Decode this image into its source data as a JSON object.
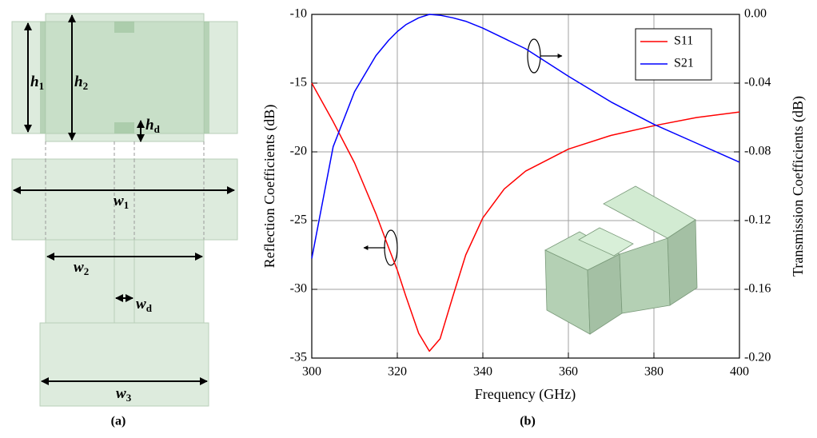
{
  "chart_data": {
    "type": "line",
    "x_label": "Frequency (GHz)",
    "y_label": "Reflection Coefficients (dB)",
    "y2_label": "Transmission Coefficients (dB)",
    "x": [
      300,
      305,
      310,
      315,
      318,
      320,
      322,
      325,
      327.5,
      330,
      333,
      336,
      340,
      345,
      350,
      360,
      370,
      380,
      390,
      400
    ],
    "series": [
      {
        "name": "S11",
        "color": "#ff0000",
        "values": [
          -15,
          -17.8,
          -20.8,
          -24.5,
          -27,
          -28.6,
          -30.5,
          -33.2,
          -34.5,
          -33.6,
          -30.5,
          -27.5,
          -24.8,
          -22.7,
          -21.4,
          -19.8,
          -18.8,
          -18.1,
          -17.5,
          -17.1
        ]
      },
      {
        "name": "S21",
        "color": "#0000ff",
        "axis": "y2",
        "values": [
          -0.142,
          -0.077,
          -0.045,
          -0.024,
          -0.015,
          -0.01,
          -0.006,
          -0.002,
          0,
          -0.0005,
          -0.002,
          -0.004,
          -0.008,
          -0.014,
          -0.02,
          -0.036,
          -0.051,
          -0.064,
          -0.075,
          -0.086
        ]
      }
    ],
    "xlim": [
      300,
      400
    ],
    "xticks": [
      300,
      320,
      340,
      360,
      380,
      400
    ],
    "ylim": [
      -35,
      -10
    ],
    "yticks": [
      -35,
      -30,
      -25,
      -20,
      -15,
      -10
    ],
    "y2lim": [
      -0.2,
      0
    ],
    "y2ticks": [
      {
        "value": -0.2,
        "label": "-0.20"
      },
      {
        "value": -0.16,
        "label": "-0.16"
      },
      {
        "value": -0.12,
        "label": "-0.12"
      },
      {
        "value": -0.08,
        "label": "-0.08"
      },
      {
        "value": -0.04,
        "label": "-0.04"
      },
      {
        "value": 0,
        "label": "0.00"
      }
    ],
    "grid": true,
    "legend": "upper right",
    "panel_label": "(b)"
  },
  "diagram": {
    "panel_label": "(a)",
    "labels": [
      {
        "symbol": "h",
        "subscript": "1"
      },
      {
        "symbol": "h",
        "subscript": "2"
      },
      {
        "symbol": "h",
        "subscript": "d"
      },
      {
        "symbol": "w",
        "subscript": "1"
      },
      {
        "symbol": "w",
        "subscript": "2"
      },
      {
        "symbol": "w",
        "subscript": "d"
      },
      {
        "symbol": "w",
        "subscript": "3"
      }
    ]
  }
}
